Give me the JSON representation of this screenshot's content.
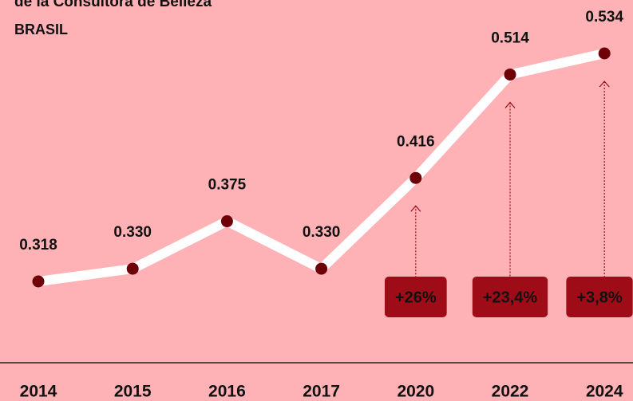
{
  "chart_data": {
    "type": "line",
    "title": "de la Consultora de Belleza",
    "subtitle": "BRASIL",
    "categories": [
      "2014",
      "2015",
      "2016",
      "2017",
      "2020",
      "2022",
      "2024"
    ],
    "values": [
      0.318,
      0.33,
      0.375,
      0.33,
      0.416,
      0.514,
      0.534
    ],
    "value_labels": [
      "0.318",
      "0.330",
      "0.375",
      "0.330",
      "0.416",
      "0.514",
      "0.534"
    ],
    "color": "#ffffff",
    "marker_color": "#6e0008",
    "annotations": [
      {
        "text": "+26%",
        "category": "2020"
      },
      {
        "text": "+23,4%",
        "category": "2022"
      },
      {
        "text": "+3,8%",
        "category": "2024"
      }
    ],
    "annotation_color": "#9e0c17"
  }
}
